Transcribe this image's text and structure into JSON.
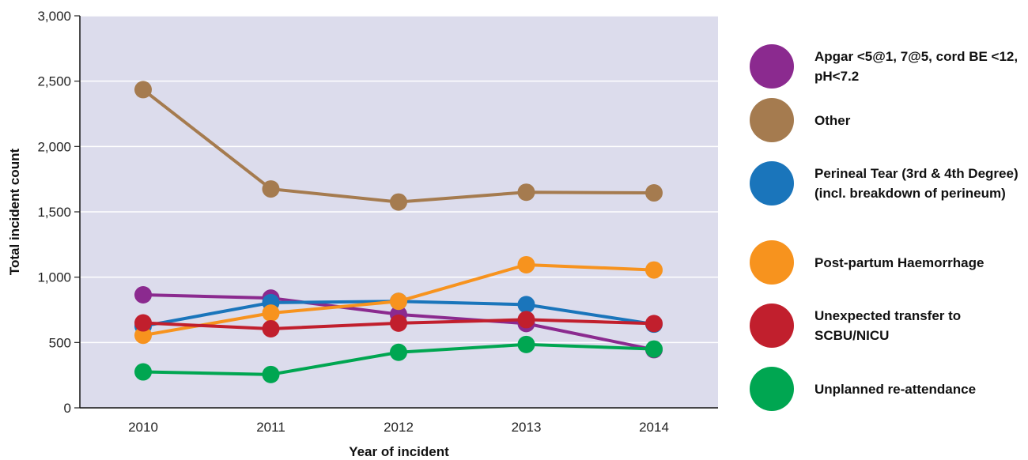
{
  "chart_data": {
    "type": "line",
    "title": "",
    "xlabel": "Year of incident",
    "ylabel": "Total incident count",
    "categories": [
      "2010",
      "2011",
      "2012",
      "2013",
      "2014"
    ],
    "yticks": [
      "0",
      "500",
      "1,000",
      "1,500",
      "2,000",
      "2,500",
      "3,000"
    ],
    "ylim": [
      0,
      3000
    ],
    "grid": true,
    "plot_background": "#dcdcec",
    "legend_position": "right",
    "series": [
      {
        "name": "Apgar <5@1, 7@5, cord BE <12, pH<7.2",
        "color": "#8b2a8f",
        "values": [
          865,
          840,
          715,
          645,
          445
        ]
      },
      {
        "name": "Other",
        "color": "#a57b4f",
        "values": [
          2435,
          1675,
          1575,
          1650,
          1645
        ]
      },
      {
        "name": "Perineal Tear (3rd & 4th Degree) (incl. breakdown of perineum)",
        "color": "#1a75bb",
        "values": [
          625,
          805,
          815,
          790,
          640
        ]
      },
      {
        "name": "Post-partum Haemorrhage",
        "color": "#f7931e",
        "values": [
          555,
          725,
          815,
          1095,
          1055
        ]
      },
      {
        "name": "Unexpected transfer to SCBU/NICU",
        "color": "#c11f2d",
        "values": [
          650,
          605,
          648,
          675,
          645
        ]
      },
      {
        "name": "Unplanned re-attendance",
        "color": "#00a651",
        "values": [
          275,
          255,
          425,
          485,
          450
        ]
      }
    ]
  }
}
